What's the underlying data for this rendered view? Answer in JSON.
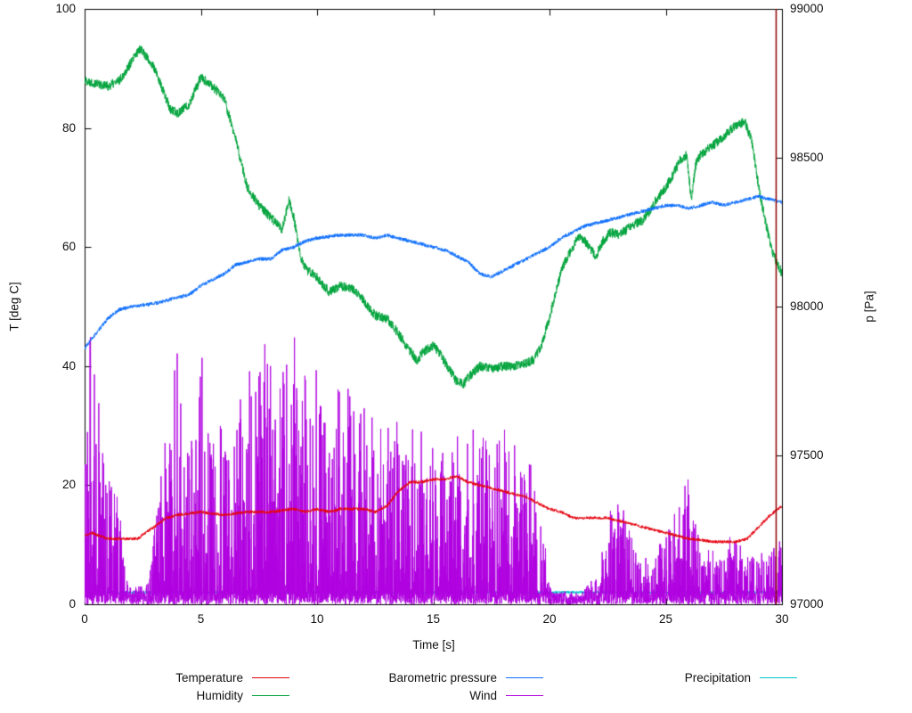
{
  "chart_data": {
    "type": "line",
    "title": "",
    "xlabel": "Time [s]",
    "ylabel_left": "T [deg C]",
    "ylabel_right": "p [Pa]",
    "x_range": [
      0,
      30
    ],
    "y_left_range": [
      0,
      100
    ],
    "y_right_range": [
      97000,
      99000
    ],
    "x_ticks": [
      0,
      5,
      10,
      15,
      20,
      25,
      30
    ],
    "y_left_ticks": [
      0,
      20,
      40,
      60,
      80,
      100
    ],
    "y_right_ticks": [
      97000,
      97500,
      98000,
      98500,
      99000
    ],
    "grid": false,
    "legend_position": "below",
    "legend_rows": [
      [
        "Temperature",
        "Barometric pressure",
        "Precipitation"
      ],
      [
        "Humidity",
        "Wind"
      ]
    ],
    "cursor_line": {
      "x": 29.75,
      "color": "#8b0000"
    },
    "series": [
      {
        "name": "Temperature",
        "color": "#e4000f",
        "axis": "left",
        "style": "noisy-line",
        "noise": 0.25,
        "anchors": [
          [
            0,
            11.5
          ],
          [
            0.3,
            12
          ],
          [
            1,
            11
          ],
          [
            2,
            11
          ],
          [
            2.3,
            11
          ],
          [
            2.6,
            12
          ],
          [
            3,
            13
          ],
          [
            3.5,
            14.5
          ],
          [
            4,
            15
          ],
          [
            5,
            15.5
          ],
          [
            6,
            15
          ],
          [
            7,
            15.5
          ],
          [
            8,
            15.5
          ],
          [
            9,
            16
          ],
          [
            9.5,
            15.5
          ],
          [
            10,
            16
          ],
          [
            10.5,
            15.5
          ],
          [
            11,
            16
          ],
          [
            12,
            16
          ],
          [
            12.5,
            15.5
          ],
          [
            13,
            16.5
          ],
          [
            13.5,
            19
          ],
          [
            14,
            20.5
          ],
          [
            14.5,
            20.5
          ],
          [
            15,
            21
          ],
          [
            15.5,
            21
          ],
          [
            16,
            21.5
          ],
          [
            16.5,
            20.5
          ],
          [
            17,
            20
          ],
          [
            17.5,
            19.5
          ],
          [
            18,
            19
          ],
          [
            18.5,
            18.5
          ],
          [
            19,
            18
          ],
          [
            19.5,
            17
          ],
          [
            20,
            16
          ],
          [
            20.5,
            15.5
          ],
          [
            21,
            14.5
          ],
          [
            21.5,
            14.5
          ],
          [
            22,
            14.5
          ],
          [
            22.5,
            14.5
          ],
          [
            23,
            14
          ],
          [
            23.5,
            13.5
          ],
          [
            24,
            13
          ],
          [
            24.5,
            12.5
          ],
          [
            25,
            12
          ],
          [
            25.5,
            11.5
          ],
          [
            26,
            11
          ],
          [
            26.5,
            10.8
          ],
          [
            27,
            10.5
          ],
          [
            27.5,
            10.5
          ],
          [
            28,
            10.5
          ],
          [
            28.5,
            11
          ],
          [
            29,
            13
          ],
          [
            29.5,
            15
          ],
          [
            30,
            16.5
          ]
        ]
      },
      {
        "name": "Humidity",
        "color": "#00a33c",
        "axis": "left",
        "style": "noisy-line",
        "noise": 0.8,
        "anchors": [
          [
            0,
            88
          ],
          [
            0.5,
            87.5
          ],
          [
            1,
            87
          ],
          [
            1.5,
            88
          ],
          [
            2,
            91
          ],
          [
            2.4,
            93.5
          ],
          [
            3,
            90
          ],
          [
            3.7,
            83
          ],
          [
            4,
            82.5
          ],
          [
            4.5,
            84
          ],
          [
            5,
            88.5
          ],
          [
            5.5,
            87
          ],
          [
            6,
            85
          ],
          [
            6.5,
            78
          ],
          [
            7,
            70
          ],
          [
            7.5,
            67
          ],
          [
            8,
            65
          ],
          [
            8.5,
            63
          ],
          [
            8.8,
            68
          ],
          [
            9,
            65
          ],
          [
            9.3,
            58
          ],
          [
            9.6,
            56
          ],
          [
            10,
            55
          ],
          [
            10.5,
            52.5
          ],
          [
            11,
            53.5
          ],
          [
            11.5,
            53
          ],
          [
            12,
            51
          ],
          [
            12.5,
            48.5
          ],
          [
            13,
            48
          ],
          [
            13.5,
            45.5
          ],
          [
            14,
            42.5
          ],
          [
            14.3,
            41
          ],
          [
            14.6,
            42.5
          ],
          [
            15,
            43.5
          ],
          [
            15.3,
            42
          ],
          [
            15.6,
            40
          ],
          [
            16,
            37.5
          ],
          [
            16.3,
            37
          ],
          [
            16.6,
            38.5
          ],
          [
            17,
            40
          ],
          [
            17.5,
            39.5
          ],
          [
            18,
            40
          ],
          [
            18.5,
            40
          ],
          [
            19,
            40.5
          ],
          [
            19.3,
            41
          ],
          [
            19.6,
            43
          ],
          [
            20,
            48
          ],
          [
            20.3,
            53
          ],
          [
            20.6,
            57
          ],
          [
            21,
            60
          ],
          [
            21.3,
            62
          ],
          [
            21.6,
            60.5
          ],
          [
            22,
            58.5
          ],
          [
            22.3,
            61
          ],
          [
            22.6,
            62.5
          ],
          [
            23,
            62
          ],
          [
            23.5,
            63.5
          ],
          [
            24,
            64.5
          ],
          [
            24.3,
            66
          ],
          [
            24.6,
            68
          ],
          [
            25,
            70
          ],
          [
            25.3,
            72
          ],
          [
            25.6,
            74.5
          ],
          [
            25.9,
            75.5
          ],
          [
            26.1,
            68
          ],
          [
            26.3,
            74
          ],
          [
            26.5,
            75.5
          ],
          [
            27,
            77
          ],
          [
            27.5,
            78.5
          ],
          [
            28,
            80.5
          ],
          [
            28.4,
            81
          ],
          [
            28.7,
            78
          ],
          [
            29,
            70
          ],
          [
            29.3,
            64
          ],
          [
            29.6,
            59
          ],
          [
            30,
            55.5
          ]
        ]
      },
      {
        "name": "Barometric pressure",
        "color": "#0d6efd",
        "axis": "right",
        "style": "noisy-line",
        "noise": 6,
        "anchors": [
          [
            0,
            97860
          ],
          [
            0.5,
            97910
          ],
          [
            1,
            97960
          ],
          [
            1.5,
            97990
          ],
          [
            2,
            98000
          ],
          [
            3,
            98010
          ],
          [
            3.5,
            98020
          ],
          [
            4,
            98030
          ],
          [
            4.5,
            98040
          ],
          [
            5,
            98070
          ],
          [
            5.5,
            98090
          ],
          [
            6,
            98110
          ],
          [
            6.5,
            98140
          ],
          [
            7,
            98150
          ],
          [
            7.5,
            98160
          ],
          [
            8,
            98160
          ],
          [
            8.5,
            98190
          ],
          [
            9,
            98200
          ],
          [
            9.5,
            98220
          ],
          [
            10,
            98230
          ],
          [
            11,
            98240
          ],
          [
            12,
            98240
          ],
          [
            12.5,
            98230
          ],
          [
            13,
            98240
          ],
          [
            13.5,
            98230
          ],
          [
            14,
            98220
          ],
          [
            14.5,
            98210
          ],
          [
            15,
            98200
          ],
          [
            15.5,
            98190
          ],
          [
            16,
            98170
          ],
          [
            16.5,
            98150
          ],
          [
            17,
            98110
          ],
          [
            17.5,
            98100
          ],
          [
            18,
            98120
          ],
          [
            18.5,
            98140
          ],
          [
            19,
            98160
          ],
          [
            19.5,
            98180
          ],
          [
            20,
            98200
          ],
          [
            20.5,
            98230
          ],
          [
            21,
            98250
          ],
          [
            21.5,
            98270
          ],
          [
            22,
            98280
          ],
          [
            22.5,
            98290
          ],
          [
            23,
            98300
          ],
          [
            23.5,
            98310
          ],
          [
            24,
            98320
          ],
          [
            24.5,
            98330
          ],
          [
            25,
            98340
          ],
          [
            25.5,
            98340
          ],
          [
            26,
            98330
          ],
          [
            26.5,
            98340
          ],
          [
            27,
            98350
          ],
          [
            27.5,
            98340
          ],
          [
            28,
            98350
          ],
          [
            28.5,
            98360
          ],
          [
            29,
            98370
          ],
          [
            29.5,
            98360
          ],
          [
            30,
            98350
          ]
        ]
      },
      {
        "name": "Wind",
        "color": "#b000e0",
        "axis": "left",
        "style": "spikes",
        "noise": 0,
        "envelope": [
          [
            0,
            32
          ],
          [
            0.3,
            48
          ],
          [
            0.6,
            35
          ],
          [
            1,
            26
          ],
          [
            1.3,
            30
          ],
          [
            1.6,
            12
          ],
          [
            1.9,
            4
          ],
          [
            2.2,
            3
          ],
          [
            2.6,
            3
          ],
          [
            2.9,
            8
          ],
          [
            3.2,
            22
          ],
          [
            3.5,
            30
          ],
          [
            3.8,
            26
          ],
          [
            3.9,
            48
          ],
          [
            4.1,
            36
          ],
          [
            4.4,
            30
          ],
          [
            4.7,
            28
          ],
          [
            5,
            46
          ],
          [
            5.3,
            30
          ],
          [
            5.6,
            28
          ],
          [
            6,
            32
          ],
          [
            6.4,
            28
          ],
          [
            6.8,
            38
          ],
          [
            7.2,
            42
          ],
          [
            7.6,
            44
          ],
          [
            8,
            48
          ],
          [
            8.4,
            40
          ],
          [
            8.8,
            44
          ],
          [
            9.2,
            48
          ],
          [
            9.6,
            36
          ],
          [
            10,
            40
          ],
          [
            10.4,
            34
          ],
          [
            10.8,
            36
          ],
          [
            11.2,
            38
          ],
          [
            11.6,
            34
          ],
          [
            12,
            36
          ],
          [
            12.4,
            34
          ],
          [
            12.8,
            30
          ],
          [
            13.2,
            32
          ],
          [
            13.6,
            30
          ],
          [
            14,
            30
          ],
          [
            14.4,
            32
          ],
          [
            14.8,
            26
          ],
          [
            15.2,
            28
          ],
          [
            15.6,
            26
          ],
          [
            16,
            30
          ],
          [
            16.4,
            26
          ],
          [
            16.8,
            34
          ],
          [
            17.2,
            30
          ],
          [
            17.6,
            26
          ],
          [
            18,
            30
          ],
          [
            18.4,
            28
          ],
          [
            18.8,
            26
          ],
          [
            19.2,
            24
          ],
          [
            19.6,
            18
          ],
          [
            19.9,
            8
          ],
          [
            20.2,
            2
          ],
          [
            20.6,
            2
          ],
          [
            21,
            2
          ],
          [
            21.4,
            2
          ],
          [
            21.8,
            4
          ],
          [
            22.2,
            8
          ],
          [
            22.6,
            16
          ],
          [
            23,
            18
          ],
          [
            23.4,
            14
          ],
          [
            23.8,
            10
          ],
          [
            24.2,
            8
          ],
          [
            24.6,
            8
          ],
          [
            25,
            14
          ],
          [
            25.4,
            18
          ],
          [
            25.8,
            25
          ],
          [
            26.2,
            16
          ],
          [
            26.6,
            8
          ],
          [
            27,
            10
          ],
          [
            27.4,
            8
          ],
          [
            27.8,
            12
          ],
          [
            28.2,
            10
          ],
          [
            28.6,
            8
          ],
          [
            29,
            8
          ],
          [
            29.4,
            10
          ],
          [
            29.7,
            12
          ],
          [
            30,
            14
          ]
        ]
      },
      {
        "name": "Precipitation",
        "color": "#00c4cc",
        "axis": "left",
        "style": "noisy-line",
        "noise": 0.2,
        "anchors": [
          [
            0,
            2
          ],
          [
            30,
            2
          ]
        ]
      }
    ]
  }
}
